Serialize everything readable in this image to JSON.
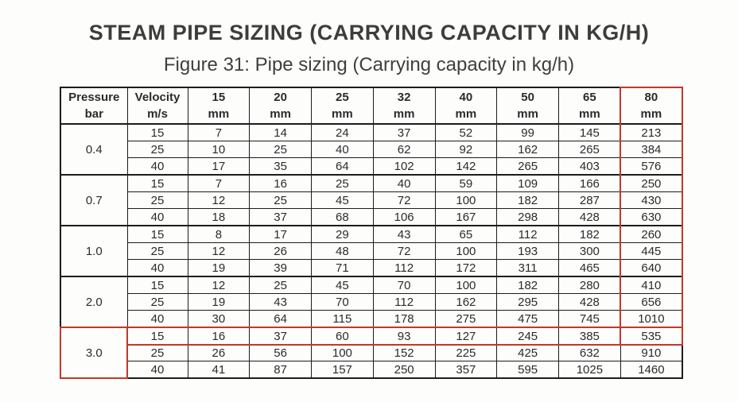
{
  "page": {
    "title": "STEAM PIPE SIZING (CARRYING CAPACITY IN KG/H)",
    "subtitle": "Figure 31: Pipe sizing (Carrying capacity in kg/h)"
  },
  "table": {
    "columns": [
      {
        "name": "pressure",
        "line1": "Pressure",
        "line2": "bar"
      },
      {
        "name": "velocity",
        "line1": "Velocity",
        "line2": "m/s"
      },
      {
        "name": "15mm",
        "line1": "15",
        "line2": "mm"
      },
      {
        "name": "20mm",
        "line1": "20",
        "line2": "mm"
      },
      {
        "name": "25mm",
        "line1": "25",
        "line2": "mm"
      },
      {
        "name": "32mm",
        "line1": "32",
        "line2": "mm"
      },
      {
        "name": "40mm",
        "line1": "40",
        "line2": "mm"
      },
      {
        "name": "50mm",
        "line1": "50",
        "line2": "mm"
      },
      {
        "name": "65mm",
        "line1": "65",
        "line2": "mm"
      },
      {
        "name": "80mm",
        "line1": "80",
        "line2": "mm"
      }
    ],
    "groups": [
      {
        "pressure": "0.4",
        "rows": [
          {
            "velocity": "15",
            "values": [
              7,
              14,
              24,
              37,
              52,
              99,
              145,
              213
            ]
          },
          {
            "velocity": "25",
            "values": [
              10,
              25,
              40,
              62,
              92,
              162,
              265,
              384
            ]
          },
          {
            "velocity": "40",
            "values": [
              17,
              35,
              64,
              102,
              142,
              265,
              403,
              576
            ]
          }
        ]
      },
      {
        "pressure": "0.7",
        "rows": [
          {
            "velocity": "15",
            "values": [
              7,
              16,
              25,
              40,
              59,
              109,
              166,
              250
            ]
          },
          {
            "velocity": "25",
            "values": [
              12,
              25,
              45,
              72,
              100,
              182,
              287,
              430
            ]
          },
          {
            "velocity": "40",
            "values": [
              18,
              37,
              68,
              106,
              167,
              298,
              428,
              630
            ]
          }
        ]
      },
      {
        "pressure": "1.0",
        "rows": [
          {
            "velocity": "15",
            "values": [
              8,
              17,
              29,
              43,
              65,
              112,
              182,
              260
            ]
          },
          {
            "velocity": "25",
            "values": [
              12,
              26,
              48,
              72,
              100,
              193,
              300,
              445
            ]
          },
          {
            "velocity": "40",
            "values": [
              19,
              39,
              71,
              112,
              172,
              311,
              465,
              640
            ]
          }
        ]
      },
      {
        "pressure": "2.0",
        "rows": [
          {
            "velocity": "15",
            "values": [
              12,
              25,
              45,
              70,
              100,
              182,
              280,
              410
            ]
          },
          {
            "velocity": "25",
            "values": [
              19,
              43,
              70,
              112,
              162,
              295,
              428,
              656
            ]
          },
          {
            "velocity": "40",
            "values": [
              30,
              64,
              115,
              178,
              275,
              475,
              745,
              1010
            ]
          }
        ]
      },
      {
        "pressure": "3.0",
        "rows": [
          {
            "velocity": "15",
            "values": [
              16,
              37,
              60,
              93,
              127,
              245,
              385,
              535
            ]
          },
          {
            "velocity": "25",
            "values": [
              26,
              56,
              100,
              152,
              225,
              425,
              632,
              910
            ]
          },
          {
            "velocity": "40",
            "values": [
              41,
              87,
              157,
              250,
              357,
              595,
              1025,
              1460
            ]
          }
        ]
      }
    ],
    "highlights": {
      "color": "#c0392b",
      "regions": [
        {
          "name": "column-80mm",
          "label": "80 mm column"
        },
        {
          "name": "pressure-3.0-cell",
          "label": "3.0 bar pressure cell"
        },
        {
          "name": "row-3.0-15ms",
          "label": "3.0 bar / 15 m/s row"
        }
      ]
    }
  }
}
